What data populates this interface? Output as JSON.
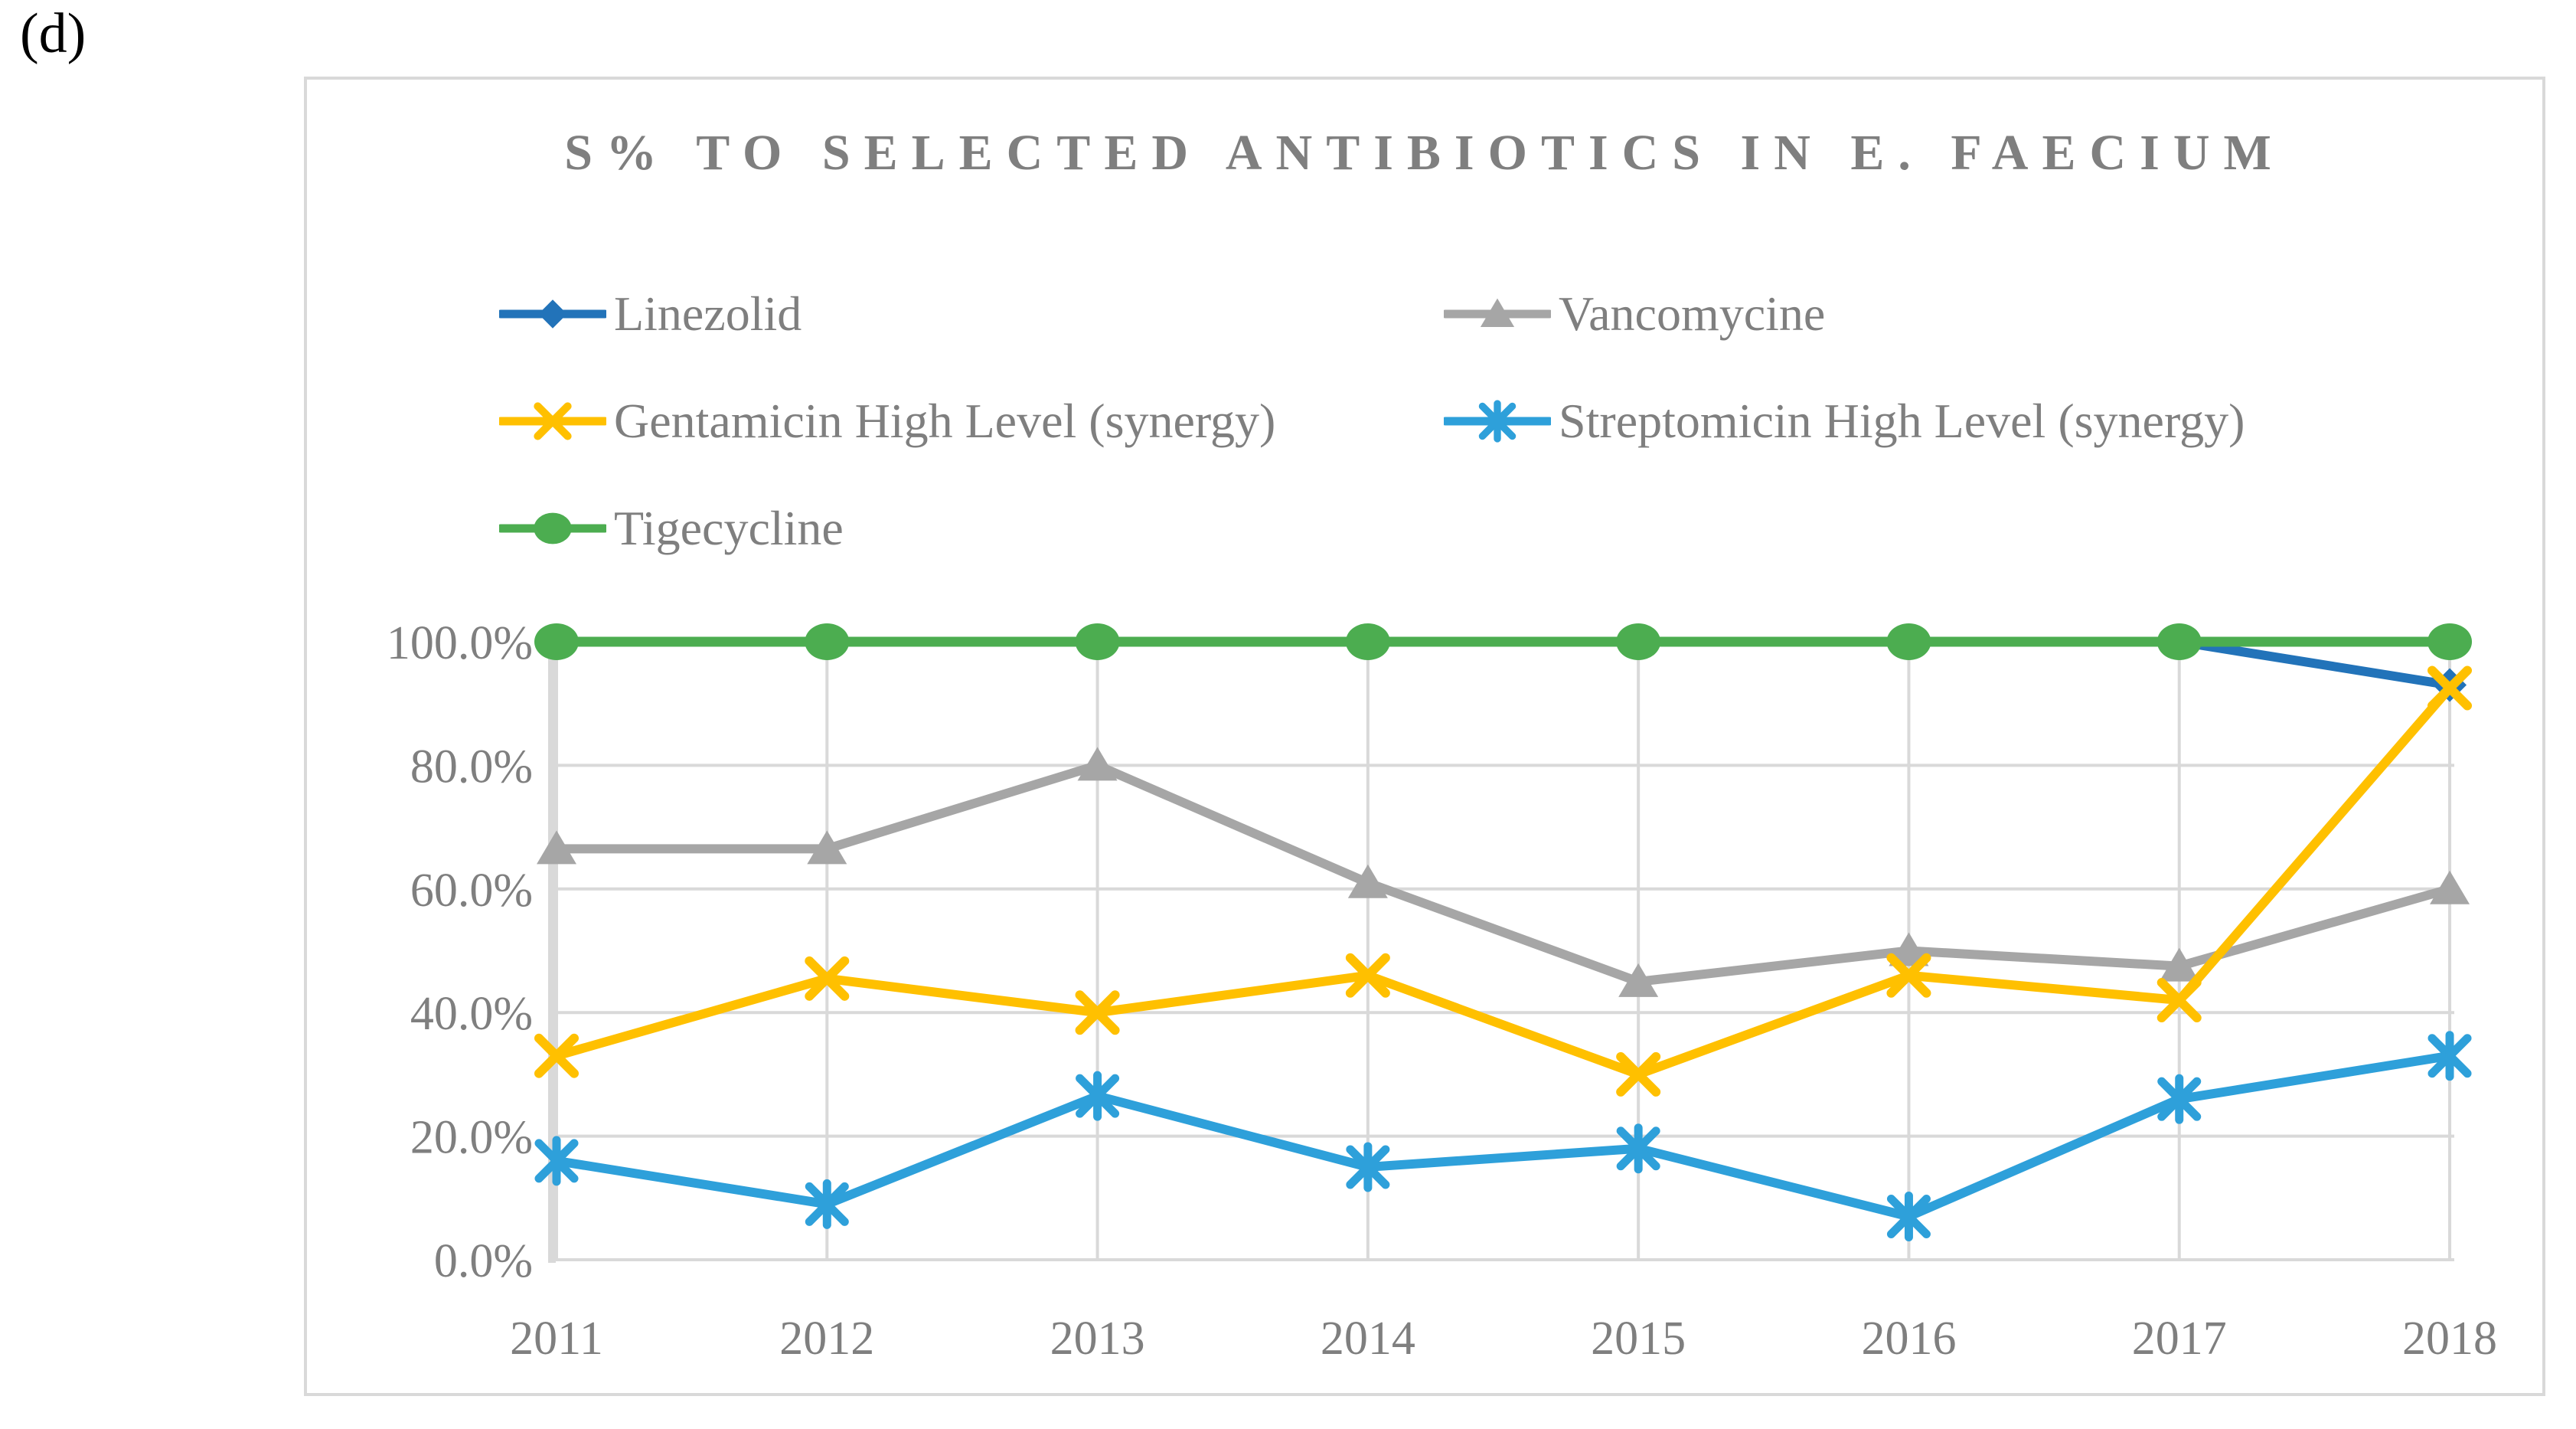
{
  "panel_label": "(d)",
  "chart_data": {
    "type": "line",
    "title": "S% TO SELECTED ANTIBIOTICS IN E. FAECIUM",
    "categories": [
      "2011",
      "2012",
      "2013",
      "2014",
      "2015",
      "2016",
      "2017",
      "2018"
    ],
    "y_ticks": [
      "100.0%",
      "80.0%",
      "60.0%",
      "40.0%",
      "20.0%",
      "0.0%"
    ],
    "ylim": [
      0,
      100
    ],
    "grid": true,
    "legend_position": "top-left",
    "xlabel": "",
    "ylabel": "",
    "colors": {
      "grid": "#d9d9d9",
      "axis_text": "#7f7f7f",
      "title_text": "#7f7f7f",
      "frame_border": "#d9d9d9"
    },
    "series": [
      {
        "name": "Linezolid",
        "color": "#2273b9",
        "marker": "diamond",
        "values": [
          100,
          100,
          100,
          100,
          100,
          100,
          100,
          93
        ]
      },
      {
        "name": "Vancomycine",
        "color": "#a6a6a6",
        "marker": "triangle",
        "values": [
          66.5,
          66.5,
          80,
          61,
          45,
          50,
          47.5,
          60
        ]
      },
      {
        "name": "Gentamicin High Level (synergy)",
        "color": "#ffc000",
        "marker": "x",
        "values": [
          33,
          45.5,
          40,
          46,
          30,
          46,
          42,
          92.5
        ]
      },
      {
        "name": "Streptomicin High Level (synergy)",
        "color": "#2ea0da",
        "marker": "asterisk",
        "values": [
          16,
          9,
          26.5,
          15,
          18,
          7,
          26,
          33
        ]
      },
      {
        "name": "Tigecycline",
        "color": "#4cad50",
        "marker": "circle",
        "values": [
          100,
          100,
          100,
          100,
          100,
          100,
          100,
          100
        ]
      }
    ]
  }
}
